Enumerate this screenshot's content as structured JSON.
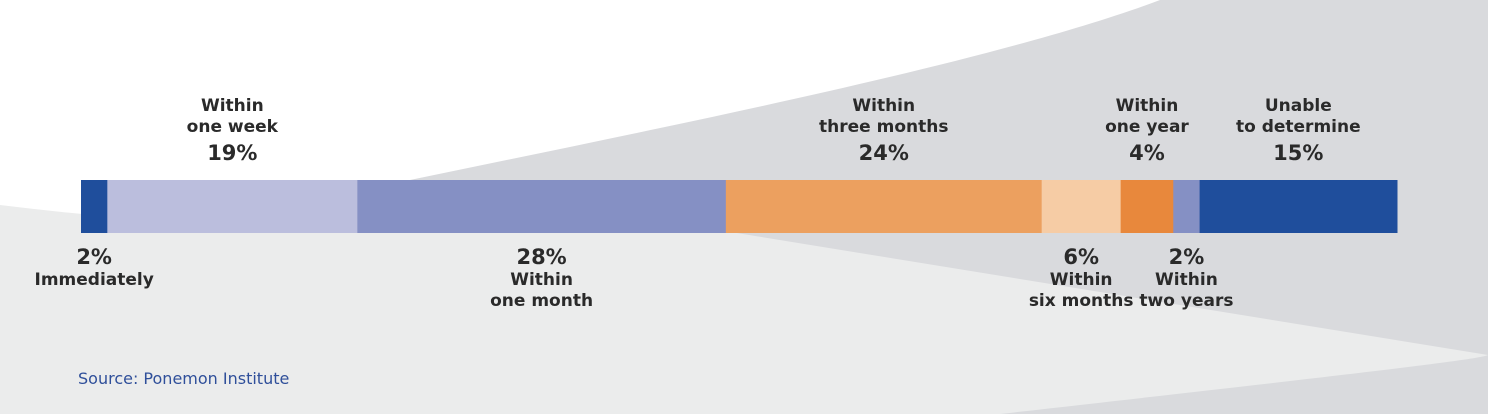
{
  "colors": {
    "background_wave": "#d9dadd",
    "background_light": "#eceded",
    "text": "#2a2a2a",
    "source": "#2f4f9a"
  },
  "chart_data": {
    "type": "bar",
    "orientation": "horizontal-stacked",
    "unit": "%",
    "segments": [
      {
        "name": "Immediately",
        "pct_label": "2%",
        "value": 2,
        "color": "#1f4e9c",
        "label_position": "below"
      },
      {
        "name": "Within one week",
        "name_lines": [
          "Within",
          "one week"
        ],
        "pct_label": "19%",
        "value": 19,
        "color": "#bbbedd",
        "label_position": "above"
      },
      {
        "name": "Within one month",
        "name_lines": [
          "Within",
          "one month"
        ],
        "pct_label": "28%",
        "value": 28,
        "color": "#8590c4",
        "label_position": "below"
      },
      {
        "name": "Within three months",
        "name_lines": [
          "Within",
          "three months"
        ],
        "pct_label": "24%",
        "value": 24,
        "color": "#eca05f",
        "label_position": "above"
      },
      {
        "name": "Within six months",
        "name_lines": [
          "Within",
          "six months"
        ],
        "pct_label": "6%",
        "value": 6,
        "color": "#f6cca5",
        "label_position": "below"
      },
      {
        "name": "Within one year",
        "name_lines": [
          "Within",
          "one year"
        ],
        "pct_label": "4%",
        "value": 4,
        "color": "#e8883c",
        "label_position": "above"
      },
      {
        "name": "Within two years",
        "name_lines": [
          "Within",
          "two years"
        ],
        "pct_label": "2%",
        "value": 2,
        "color": "#8590c4",
        "label_position": "below"
      },
      {
        "name": "Unable to determine",
        "name_lines": [
          "Unable",
          "to determine"
        ],
        "pct_label": "15%",
        "value": 15,
        "color": "#1f4e9c",
        "label_position": "above"
      }
    ]
  },
  "source": "Source: Ponemon Institute"
}
